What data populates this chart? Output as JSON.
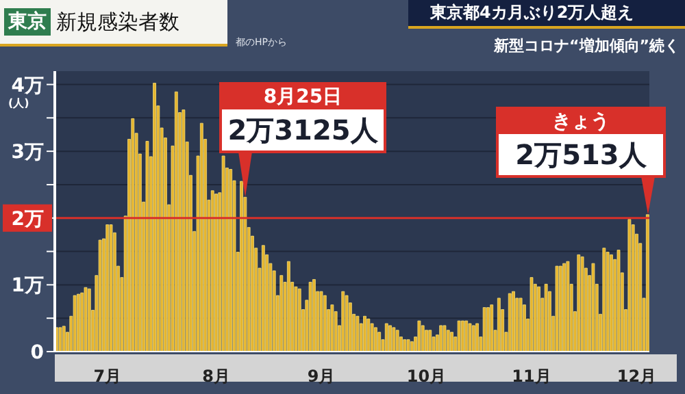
{
  "chart_data": {
    "type": "bar",
    "title": "東京 新規感染者数",
    "subtitle": "東京都4カ月ぶり2万人超え",
    "annotations": [
      "新型コロナ“増加傾向”続く",
      "都のHPから",
      "8月25日",
      "2万3125人",
      "きょう",
      "2万513人"
    ],
    "ylabel": "(人)",
    "categories": [
      null,
      null,
      null,
      null,
      null,
      null,
      null,
      null,
      null,
      null,
      null,
      null,
      null,
      null,
      "7月",
      null,
      null,
      null,
      null,
      null,
      null,
      null,
      null,
      null,
      null,
      null,
      null,
      null,
      null,
      null,
      null,
      null,
      null,
      null,
      null,
      null,
      null,
      null,
      null,
      null,
      null,
      null,
      null,
      null,
      "8月",
      null,
      null,
      null,
      null,
      null,
      null,
      null,
      null,
      null,
      null,
      null,
      null,
      null,
      null,
      null,
      null,
      null,
      null,
      null,
      null,
      null,
      null,
      null,
      null,
      null,
      null,
      null,
      null,
      "9月",
      null,
      null,
      null,
      null,
      null,
      null,
      null,
      null,
      null,
      null,
      null,
      null,
      null,
      null,
      null,
      null,
      null,
      null,
      null,
      null,
      null,
      null,
      null,
      null,
      null,
      null,
      null,
      null,
      "10月",
      null,
      null,
      null,
      null,
      null,
      null,
      null,
      null,
      null,
      null,
      null,
      null,
      null,
      null,
      null,
      null,
      null,
      null,
      null,
      null,
      null,
      null,
      null,
      null,
      null,
      null,
      null,
      null,
      "11月",
      null,
      null,
      null,
      null,
      null,
      null,
      null,
      null,
      null,
      null,
      null,
      null,
      null,
      null,
      null,
      null,
      null,
      null,
      null,
      null,
      null,
      null,
      null,
      null,
      null,
      null,
      null,
      null,
      "12月",
      null,
      null,
      null
    ],
    "values": [
      0.36,
      0.36,
      0.38,
      0.29,
      0.53,
      0.84,
      0.86,
      0.88,
      0.96,
      0.94,
      0.62,
      1.14,
      1.67,
      1.69,
      1.9,
      1.9,
      1.78,
      1.28,
      1.11,
      2.03,
      3.18,
      3.49,
      3.27,
      2.96,
      2.24,
      3.15,
      2.92,
      4.02,
      3.68,
      3.35,
      3.2,
      2.2,
      3.08,
      3.89,
      3.58,
      3.62,
      3.14,
      2.64,
      1.8,
      2.93,
      3.42,
      3.18,
      2.27,
      2.41,
      2.36,
      2.38,
      2.93,
      2.75,
      2.73,
      2.56,
      1.49,
      2.55,
      2.3125,
      1.86,
      1.73,
      1.55,
      1.25,
      1.59,
      1.45,
      1.32,
      1.21,
      0.84,
      1.14,
      1.04,
      1.35,
      1.04,
      0.97,
      0.94,
      0.63,
      0.77,
      1.04,
      1.08,
      0.9,
      0.9,
      0.84,
      0.63,
      0.7,
      0.6,
      0.39,
      0.9,
      0.84,
      0.73,
      0.56,
      0.53,
      0.42,
      0.53,
      0.49,
      0.42,
      0.36,
      0.29,
      0.18,
      0.42,
      0.39,
      0.36,
      0.32,
      0.22,
      0.18,
      0.18,
      0.15,
      0.22,
      0.46,
      0.39,
      0.32,
      0.32,
      0.22,
      0.25,
      0.39,
      0.39,
      0.32,
      0.29,
      0.22,
      0.46,
      0.46,
      0.46,
      0.42,
      0.39,
      0.42,
      0.22,
      0.66,
      0.66,
      0.7,
      0.32,
      0.8,
      0.63,
      0.29,
      0.87,
      0.9,
      0.8,
      0.8,
      0.7,
      0.49,
      1.11,
      1.01,
      0.97,
      0.8,
      1.01,
      0.9,
      0.53,
      1.28,
      1.28,
      1.32,
      1.35,
      1.01,
      0.6,
      1.45,
      1.42,
      1.25,
      1.14,
      1.32,
      1.01,
      0.56,
      1.55,
      1.49,
      1.45,
      1.38,
      1.52,
      1.18,
      0.63,
      1.98,
      1.9,
      1.76,
      1.62,
      0.8,
      2.0513
    ],
    "color": "#e6b52e",
    "ylim": [
      0,
      4.2
    ],
    "yticks": [
      0,
      {
        "value": 0.5,
        "label": null
      },
      {
        "value": 1,
        "label": "1万"
      },
      {
        "value": 1.5,
        "label": null
      },
      {
        "value": 2,
        "label": "2万"
      },
      {
        "value": 2.5,
        "label": null
      },
      {
        "value": 3,
        "label": "3万"
      },
      {
        "value": 3.5,
        "label": null
      },
      {
        "value": 4,
        "label": "4万"
      }
    ],
    "ref_lines": [
      {
        "axis": "y",
        "value": 2,
        "color": "#d8302a"
      }
    ],
    "grid": "y"
  }
}
